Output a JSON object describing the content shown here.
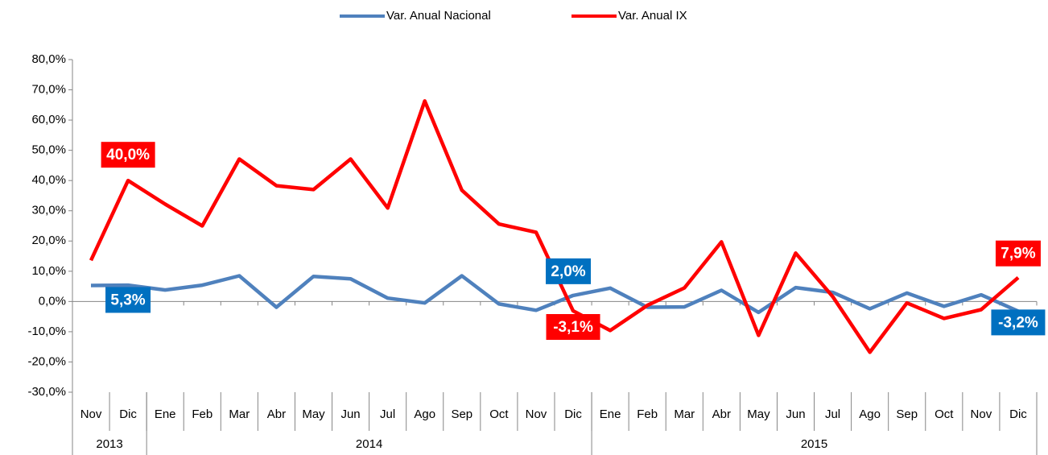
{
  "chart_data": {
    "type": "line",
    "categories": [
      "Nov",
      "Dic",
      "Ene",
      "Feb",
      "Mar",
      "Abr",
      "May",
      "Jun",
      "Jul",
      "Ago",
      "Sep",
      "Oct",
      "Nov",
      "Dic",
      "Ene",
      "Feb",
      "Mar",
      "Abr",
      "May",
      "Jun",
      "Jul",
      "Ago",
      "Sep",
      "Oct",
      "Nov",
      "Dic"
    ],
    "groups": [
      {
        "label": "2013",
        "count": 2
      },
      {
        "label": "2014",
        "count": 12
      },
      {
        "label": "2015",
        "count": 12
      }
    ],
    "series": [
      {
        "name": "Var. Anual Nacional",
        "color": "#4f81bd",
        "values": [
          5.3,
          5.4,
          3.8,
          5.4,
          8.5,
          -1.9,
          8.3,
          7.5,
          1.1,
          -0.5,
          8.5,
          -0.8,
          -2.9,
          2.0,
          4.4,
          -1.9,
          -1.8,
          3.7,
          -3.6,
          4.6,
          3.0,
          -2.4,
          2.8,
          -1.6,
          2.2,
          -3.2
        ],
        "value_labels": [
          "5,3%",
          null,
          null,
          null,
          null,
          null,
          null,
          null,
          null,
          null,
          null,
          null,
          null,
          "2,0%",
          null,
          null,
          null,
          null,
          null,
          null,
          null,
          null,
          null,
          null,
          null,
          "-3,2%"
        ],
        "label_color": "#0070c0"
      },
      {
        "name": "Var. Anual IX",
        "color": "#ff0000",
        "values": [
          13.6,
          40.0,
          32.2,
          25.0,
          47.1,
          38.3,
          37.0,
          47.1,
          30.9,
          66.3,
          36.8,
          25.6,
          22.9,
          -3.1,
          -9.6,
          -1.3,
          4.5,
          19.7,
          -11.2,
          16.0,
          1.6,
          -16.8,
          -0.5,
          -5.6,
          -2.7,
          7.9
        ],
        "value_labels": [
          null,
          "40,0%",
          null,
          null,
          null,
          null,
          null,
          null,
          null,
          null,
          null,
          null,
          null,
          "-3,1%",
          null,
          null,
          null,
          null,
          null,
          null,
          null,
          null,
          null,
          null,
          null,
          "7,9%"
        ],
        "label_color": "#ff0000"
      }
    ],
    "ylim": [
      -30,
      80
    ],
    "yticks": [
      {
        "value": -30,
        "label": "-30,0%"
      },
      {
        "value": -20,
        "label": "-20,0%"
      },
      {
        "value": -10,
        "label": "-10,0%"
      },
      {
        "value": 0,
        "label": "0,0%"
      },
      {
        "value": 10,
        "label": "10,0%"
      },
      {
        "value": 20,
        "label": "20,0%"
      },
      {
        "value": 30,
        "label": "30,0%"
      },
      {
        "value": 40,
        "label": "40,0%"
      },
      {
        "value": 50,
        "label": "50,0%"
      },
      {
        "value": 60,
        "label": "60,0%"
      },
      {
        "value": 70,
        "label": "70,0%"
      },
      {
        "value": 80,
        "label": "80,0%"
      }
    ],
    "legend": "top",
    "grid": false
  }
}
